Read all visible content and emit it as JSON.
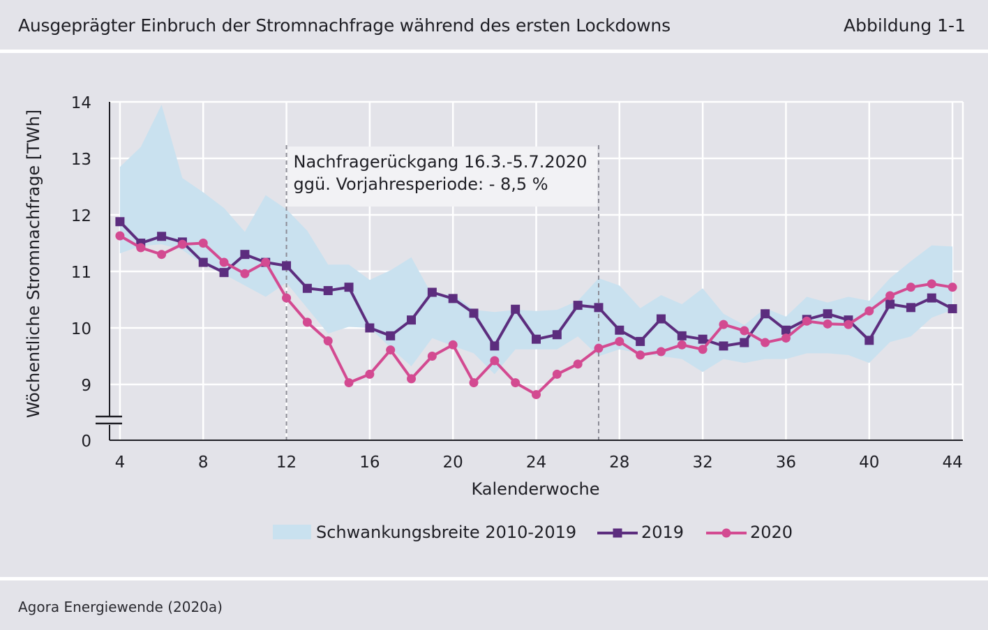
{
  "header": {
    "title": "Ausgeprägter Einbruch der Stromnachfrage während des ersten Lockdowns",
    "figure_label": "Abbildung 1-1"
  },
  "footer": {
    "source": "Agora Energiewende (2020a)"
  },
  "chart_data": {
    "type": "line",
    "xlabel": "Kalenderwoche",
    "ylabel": "Wöchentliche Stromnachfrage [TWh]",
    "xlim": [
      3.5,
      44.5
    ],
    "ylim": [
      8.4,
      14
    ],
    "y_axis_break": true,
    "x_ticks": [
      4,
      8,
      12,
      16,
      20,
      24,
      28,
      32,
      36,
      40,
      44
    ],
    "y_ticks": [
      9,
      10,
      11,
      12,
      13,
      14
    ],
    "y_break_tick_label": "0",
    "grid": true,
    "legend_position": "bottom",
    "annotation": {
      "x_start": 12,
      "x_end": 27,
      "line1": "Nachfragerückgang 16.3.-5.7.2020",
      "line2": "ggü. Vorjahresperiode: - 8,5 %"
    },
    "band": {
      "name": "Schwankungsbreite 2010-2019",
      "color": "#c9e1ef",
      "x": [
        4,
        5,
        6,
        7,
        8,
        9,
        10,
        11,
        12,
        13,
        14,
        15,
        16,
        17,
        18,
        19,
        20,
        21,
        22,
        23,
        24,
        25,
        26,
        27,
        28,
        29,
        30,
        31,
        32,
        33,
        34,
        35,
        36,
        37,
        38,
        39,
        40,
        41,
        42,
        43,
        44
      ],
      "upper": [
        12.85,
        13.2,
        13.95,
        12.65,
        12.4,
        12.12,
        11.7,
        12.35,
        12.1,
        11.72,
        11.12,
        11.12,
        10.85,
        11.02,
        11.25,
        10.58,
        10.6,
        10.32,
        10.28,
        10.32,
        10.3,
        10.32,
        10.48,
        10.88,
        10.75,
        10.35,
        10.58,
        10.42,
        10.7,
        10.25,
        10.05,
        10.35,
        10.2,
        10.55,
        10.45,
        10.55,
        10.48,
        10.88,
        11.18,
        11.46,
        11.44
      ],
      "lower": [
        11.32,
        11.45,
        11.48,
        11.38,
        11.12,
        10.95,
        10.75,
        10.55,
        10.8,
        10.35,
        9.9,
        10.02,
        10.0,
        9.65,
        9.32,
        9.82,
        9.68,
        9.55,
        9.18,
        9.62,
        9.62,
        9.62,
        9.85,
        9.5,
        9.62,
        9.55,
        9.5,
        9.45,
        9.22,
        9.45,
        9.38,
        9.45,
        9.45,
        9.55,
        9.55,
        9.52,
        9.38,
        9.75,
        9.85,
        10.18,
        10.32
      ]
    },
    "series": [
      {
        "name": "2019",
        "color": "#5c2d7e",
        "marker": "square",
        "x": [
          4,
          5,
          6,
          7,
          8,
          9,
          10,
          11,
          12,
          13,
          14,
          15,
          16,
          17,
          18,
          19,
          20,
          21,
          22,
          23,
          24,
          25,
          26,
          27,
          28,
          29,
          30,
          31,
          32,
          33,
          34,
          35,
          36,
          37,
          38,
          39,
          40,
          41,
          42,
          43,
          44
        ],
        "values": [
          11.88,
          11.5,
          11.62,
          11.52,
          11.16,
          10.98,
          11.3,
          11.16,
          11.1,
          10.7,
          10.66,
          10.72,
          10.0,
          9.86,
          10.14,
          10.63,
          10.52,
          10.26,
          9.68,
          10.33,
          9.8,
          9.88,
          10.4,
          10.36,
          9.96,
          9.76,
          10.16,
          9.86,
          9.8,
          9.68,
          9.74,
          10.25,
          9.96,
          10.15,
          10.25,
          10.14,
          9.78,
          10.42,
          10.36,
          10.53,
          10.34
        ]
      },
      {
        "name": "2020",
        "color": "#d34a91",
        "marker": "circle",
        "x": [
          4,
          5,
          6,
          7,
          8,
          9,
          10,
          11,
          12,
          13,
          14,
          15,
          16,
          17,
          18,
          19,
          20,
          21,
          22,
          23,
          24,
          25,
          26,
          27,
          28,
          29,
          30,
          31,
          32,
          33,
          34,
          35,
          36,
          37,
          38,
          39,
          40,
          41,
          42,
          43,
          44
        ],
        "values": [
          11.63,
          11.42,
          11.3,
          11.48,
          11.5,
          11.16,
          10.96,
          11.16,
          10.53,
          10.1,
          9.77,
          9.03,
          9.18,
          9.61,
          9.1,
          9.5,
          9.7,
          9.03,
          9.42,
          9.03,
          8.82,
          9.18,
          9.36,
          9.64,
          9.76,
          9.52,
          9.58,
          9.7,
          9.62,
          10.06,
          9.95,
          9.74,
          9.82,
          10.12,
          10.07,
          10.06,
          10.3,
          10.57,
          10.72,
          10.78,
          10.72
        ]
      }
    ]
  }
}
